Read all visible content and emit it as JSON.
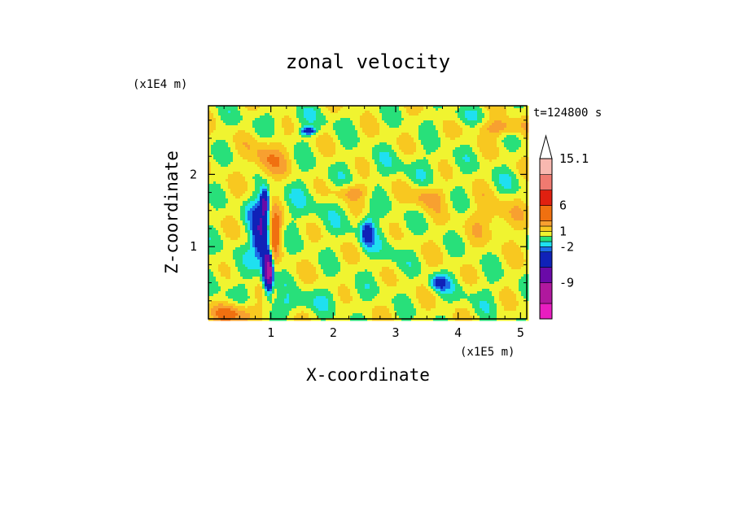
{
  "chart_data": {
    "type": "heatmap",
    "title": "zonal velocity",
    "xlabel": "X-coordinate",
    "ylabel": "Z-coordinate",
    "x_multiplier": "(x1E5 m)",
    "y_multiplier": "(x1E4 m)",
    "time_label": "t=124800 s",
    "xlim": [
      0,
      5.1
    ],
    "ylim": [
      0,
      2.95
    ],
    "x_ticks": [
      "1",
      "2",
      "3",
      "4",
      "5"
    ],
    "y_ticks": [
      "1",
      "2"
    ],
    "colorbar": {
      "labels": [
        "15.1",
        "6",
        "1",
        "-2",
        "-9"
      ],
      "label_values": [
        15.1,
        6,
        1,
        -2,
        -9
      ],
      "min": -16,
      "max": 15.1,
      "levels": [
        {
          "lo": -16,
          "hi": -13,
          "color": "#e81ec0"
        },
        {
          "lo": -13,
          "hi": -9,
          "color": "#b0189e"
        },
        {
          "lo": -9,
          "hi": -6,
          "color": "#6a0aa8"
        },
        {
          "lo": -6,
          "hi": -3,
          "color": "#1022b8"
        },
        {
          "lo": -3,
          "hi": -2,
          "color": "#1c6ee8"
        },
        {
          "lo": -2,
          "hi": -1,
          "color": "#1fe0f0"
        },
        {
          "lo": -1,
          "hi": 0,
          "color": "#28e07a"
        },
        {
          "lo": 0,
          "hi": 1,
          "color": "#f0f430"
        },
        {
          "lo": 1,
          "hi": 2,
          "color": "#f8c820"
        },
        {
          "lo": 2,
          "hi": 3,
          "color": "#f8a030"
        },
        {
          "lo": 3,
          "hi": 6,
          "color": "#f07010"
        },
        {
          "lo": 6,
          "hi": 9,
          "color": "#e02010"
        },
        {
          "lo": 9,
          "hi": 12,
          "color": "#f07a70"
        },
        {
          "lo": 12,
          "hi": 15.1,
          "color": "#f8b8b0"
        }
      ],
      "extend": "max"
    },
    "background_value": 0.5,
    "features": [
      {
        "x": 0.85,
        "z": 1.15,
        "rx": 0.14,
        "rz": 0.32,
        "v": -6.5
      },
      {
        "x": 0.92,
        "z": 0.72,
        "rx": 0.06,
        "rz": 0.3,
        "v": -6
      },
      {
        "x": 0.98,
        "z": 0.65,
        "rx": 0.05,
        "rz": 0.25,
        "v": -10
      },
      {
        "x": 0.9,
        "z": 1.6,
        "rx": 0.07,
        "rz": 0.18,
        "v": -7
      },
      {
        "x": 0.75,
        "z": 1.5,
        "rx": 0.2,
        "rz": 0.25,
        "v": -1.5
      },
      {
        "x": 0.35,
        "z": 0.55,
        "rx": 0.45,
        "rz": 0.5,
        "v": -0.6
      },
      {
        "x": 1.05,
        "z": 1.2,
        "rx": 0.12,
        "rz": 0.3,
        "v": 4.5
      },
      {
        "x": 0.45,
        "z": 0.08,
        "rx": 0.35,
        "rz": 0.15,
        "v": 3.2
      },
      {
        "x": 1.6,
        "z": 2.6,
        "rx": 0.12,
        "rz": 0.05,
        "v": -5
      },
      {
        "x": 0.95,
        "z": 2.2,
        "rx": 0.25,
        "rz": 0.3,
        "v": 2.3
      },
      {
        "x": 1.35,
        "z": 2.75,
        "rx": 0.9,
        "rz": 0.18,
        "v": -0.7
      },
      {
        "x": 1.6,
        "z": 1.6,
        "rx": 0.6,
        "rz": 0.4,
        "v": -0.8
      },
      {
        "x": 2.6,
        "z": 1.25,
        "rx": 0.5,
        "rz": 0.35,
        "v": -0.6
      },
      {
        "x": 2.55,
        "z": 1.2,
        "rx": 0.1,
        "rz": 0.18,
        "v": -4
      },
      {
        "x": 3.2,
        "z": 2.1,
        "rx": 0.9,
        "rz": 0.25,
        "v": -0.7
      },
      {
        "x": 4.7,
        "z": 2.65,
        "rx": 0.35,
        "rz": 0.12,
        "v": 2.4
      },
      {
        "x": 4.0,
        "z": 2.8,
        "rx": 0.5,
        "rz": 0.12,
        "v": -0.8
      },
      {
        "x": 3.7,
        "z": 0.5,
        "rx": 0.15,
        "rz": 0.12,
        "v": -3.5
      },
      {
        "x": 2.0,
        "z": 0.3,
        "rx": 0.6,
        "rz": 0.2,
        "v": -0.6
      },
      {
        "x": 4.3,
        "z": 0.35,
        "rx": 0.5,
        "rz": 0.25,
        "v": -0.6
      },
      {
        "x": 2.3,
        "z": 1.75,
        "rx": 0.3,
        "rz": 0.12,
        "v": 2.2
      },
      {
        "x": 3.5,
        "z": 1.7,
        "rx": 0.25,
        "rz": 0.15,
        "v": 2.2
      },
      {
        "x": 4.6,
        "z": 1.4,
        "rx": 0.35,
        "rz": 0.25,
        "v": 1.6
      },
      {
        "x": 2.9,
        "z": 0.85,
        "rx": 0.25,
        "rz": 0.3,
        "v": -0.7
      },
      {
        "x": 4.85,
        "z": 1.9,
        "rx": 0.3,
        "rz": 0.2,
        "v": -0.7
      },
      {
        "x": 1.3,
        "z": 0.2,
        "rx": 0.35,
        "rz": 0.15,
        "v": -1.5
      }
    ]
  }
}
